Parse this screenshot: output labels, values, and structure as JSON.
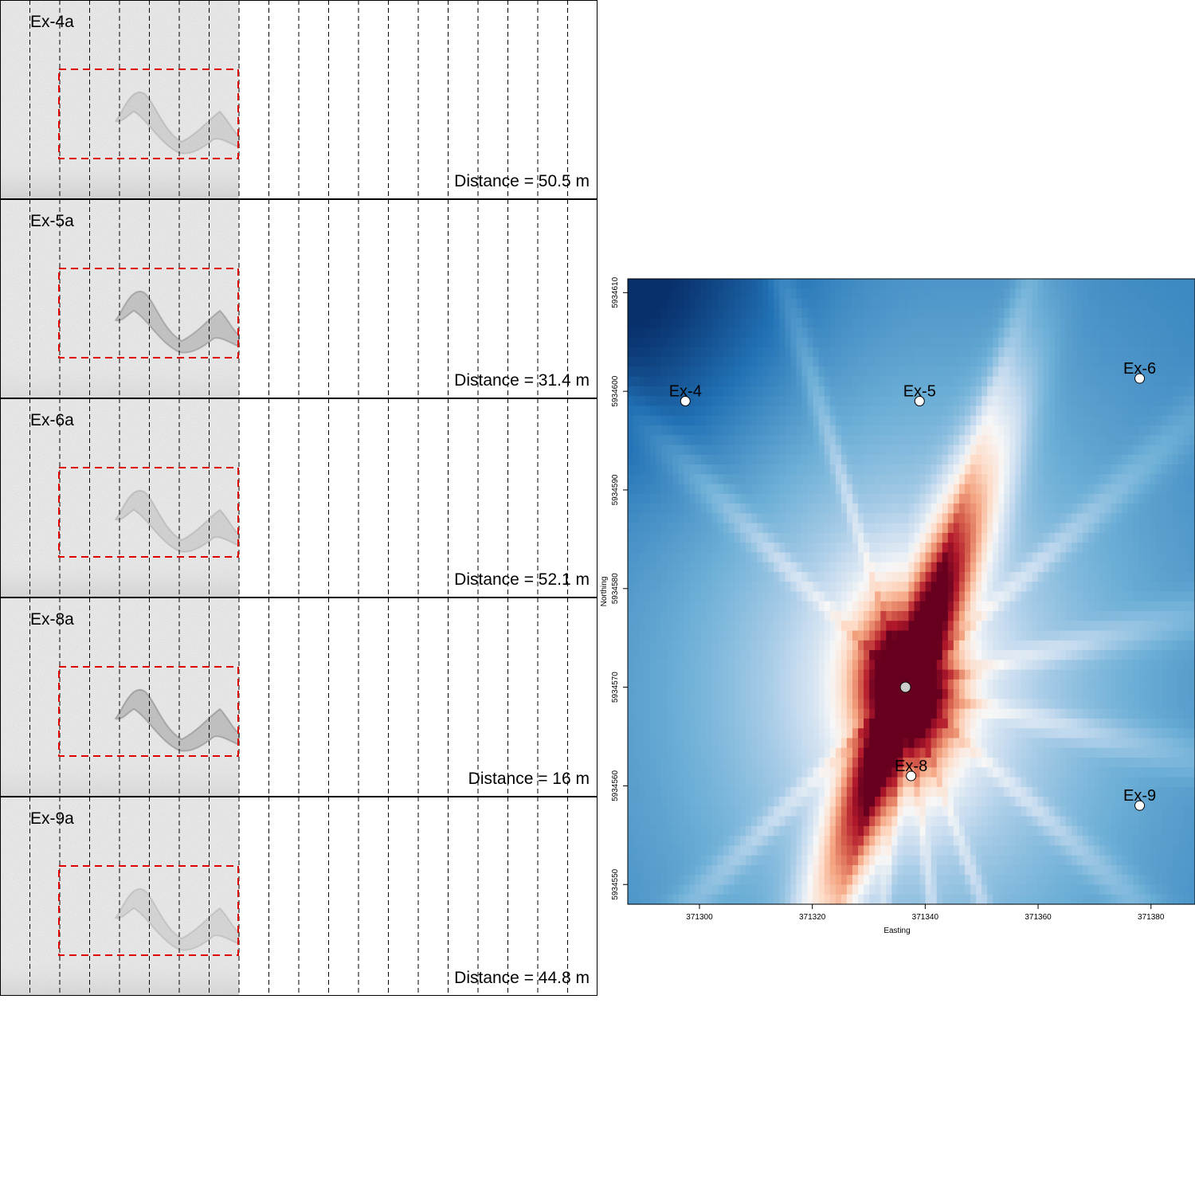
{
  "chart_data": [
    {
      "type": "spectrogram-panels",
      "panels": [
        {
          "label": "Ex-4a",
          "distance_text": "Distance = 50.5 m",
          "distance_m": 50.5,
          "call_intensity": 0.35,
          "band_intensity": 0.55
        },
        {
          "label": "Ex-5a",
          "distance_text": "Distance = 31.4 m",
          "distance_m": 31.4,
          "call_intensity": 0.6,
          "band_intensity": 0.3
        },
        {
          "label": "Ex-6a",
          "distance_text": "Distance = 52.1 m",
          "distance_m": 52.1,
          "call_intensity": 0.35,
          "band_intensity": 0.45
        },
        {
          "label": "Ex-8a",
          "distance_text": "Distance = 16 m",
          "distance_m": 16,
          "call_intensity": 0.65,
          "band_intensity": 0.35
        },
        {
          "label": "Ex-9a",
          "distance_text": "Distance = 44.8 m",
          "distance_m": 44.8,
          "call_intensity": 0.3,
          "band_intensity": 0.4
        }
      ],
      "vertical_gridlines": 19
    },
    {
      "type": "heatmap",
      "xlabel": "Easting",
      "ylabel": "Northing",
      "xlim": [
        371287.3,
        371387.8
      ],
      "ylim": [
        5934548,
        5934611.4
      ],
      "xticks": [
        371300,
        371320,
        371340,
        371360,
        371380
      ],
      "yticks": [
        5934550,
        5934560,
        5934570,
        5934580,
        5934590,
        5934600,
        5934610
      ],
      "colormap": [
        "#08306b",
        "#2171b5",
        "#6baed6",
        "#c6dbef",
        "#f7f7f7",
        "#fddbc7",
        "#f4a582",
        "#d6604d",
        "#b2182b",
        "#67001f"
      ],
      "estimated_source": {
        "x": 371336.5,
        "y": 5934570
      },
      "stations": [
        {
          "name": "Ex-4",
          "x": 371297.5,
          "y": 5934599
        },
        {
          "name": "Ex-5",
          "x": 371339,
          "y": 5934599
        },
        {
          "name": "Ex-6",
          "x": 371378,
          "y": 5934601.3
        },
        {
          "name": "Ex-8",
          "x": 371337.5,
          "y": 5934561
        },
        {
          "name": "Ex-9",
          "x": 371378,
          "y": 5934558
        }
      ]
    }
  ]
}
